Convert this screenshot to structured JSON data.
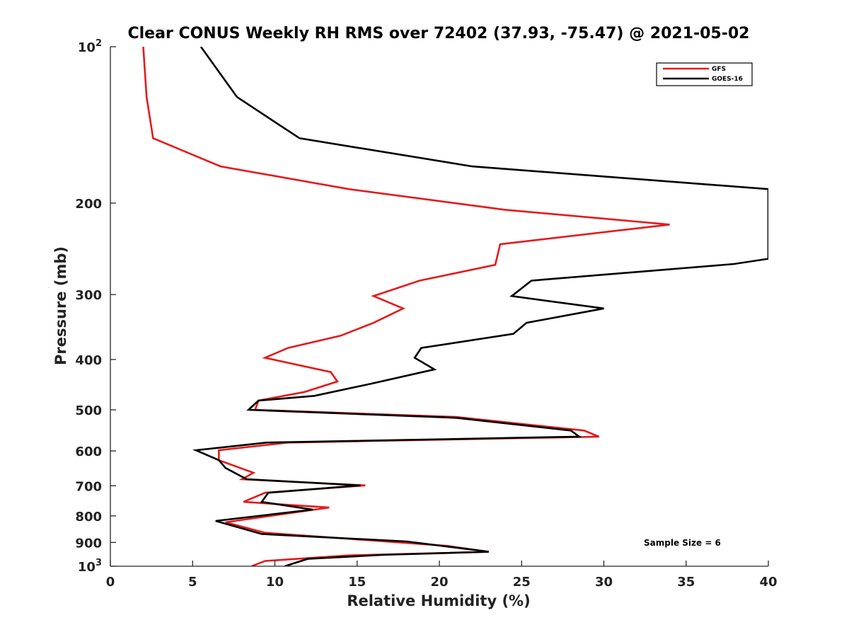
{
  "chart_data": {
    "type": "line",
    "title": "Clear CONUS Weekly RH RMS over 72402 (37.93, -75.47) @ 2021-05-02",
    "xlabel": "Relative Humidity (%)",
    "ylabel": "Pressure (mb)",
    "xlim": [
      0,
      40
    ],
    "ylim": [
      100,
      1000
    ],
    "yscale": "log",
    "yreversed": true,
    "grid": false,
    "legend_position": "top-right",
    "x_ticks": [
      {
        "value": 0,
        "label": "0"
      },
      {
        "value": 5,
        "label": "5"
      },
      {
        "value": 10,
        "label": "10"
      },
      {
        "value": 15,
        "label": "15"
      },
      {
        "value": 20,
        "label": "20"
      },
      {
        "value": 25,
        "label": "25"
      },
      {
        "value": 30,
        "label": "30"
      },
      {
        "value": 35,
        "label": "35"
      },
      {
        "value": 40,
        "label": "40"
      }
    ],
    "y_ticks": [
      {
        "value": 100,
        "label": "10",
        "sup": "2"
      },
      {
        "value": 200,
        "label": "200",
        "sup": ""
      },
      {
        "value": 300,
        "label": "300",
        "sup": ""
      },
      {
        "value": 400,
        "label": "400",
        "sup": ""
      },
      {
        "value": 500,
        "label": "500",
        "sup": ""
      },
      {
        "value": 600,
        "label": "600",
        "sup": ""
      },
      {
        "value": 700,
        "label": "700",
        "sup": ""
      },
      {
        "value": 800,
        "label": "800",
        "sup": ""
      },
      {
        "value": 900,
        "label": "900",
        "sup": ""
      },
      {
        "value": 1000,
        "label": "10",
        "sup": "3"
      }
    ],
    "series": [
      {
        "name": "GFS",
        "color": "#e41a1c",
        "points": [
          [
            2.0,
            100
          ],
          [
            2.2,
            125
          ],
          [
            2.6,
            150
          ],
          [
            6.7,
            170
          ],
          [
            14.5,
            188
          ],
          [
            24.0,
            206
          ],
          [
            34.0,
            220
          ],
          [
            23.7,
            240
          ],
          [
            23.4,
            263
          ],
          [
            18.8,
            282
          ],
          [
            16.0,
            302
          ],
          [
            17.8,
            319
          ],
          [
            16.0,
            340
          ],
          [
            14.0,
            360
          ],
          [
            10.8,
            380
          ],
          [
            9.4,
            397
          ],
          [
            13.4,
            423
          ],
          [
            13.8,
            441
          ],
          [
            11.8,
            462
          ],
          [
            9.0,
            480
          ],
          [
            8.8,
            500
          ],
          [
            21.0,
            516
          ],
          [
            28.8,
            548
          ],
          [
            29.7,
            563
          ],
          [
            10.8,
            578
          ],
          [
            6.6,
            598
          ],
          [
            6.6,
            625
          ],
          [
            8.7,
            661
          ],
          [
            8.0,
            680
          ],
          [
            15.5,
            699
          ],
          [
            9.4,
            722
          ],
          [
            8.1,
            752
          ],
          [
            13.3,
            771
          ],
          [
            7.0,
            823
          ],
          [
            9.4,
            862
          ],
          [
            20.5,
            914
          ],
          [
            23.0,
            938
          ],
          [
            14.5,
            953
          ],
          [
            9.4,
            977
          ],
          [
            8.6,
            1000
          ]
        ]
      },
      {
        "name": "GOES-16",
        "color": "#000000",
        "points": [
          [
            5.5,
            100
          ],
          [
            7.7,
            125
          ],
          [
            11.5,
            150
          ],
          [
            22.0,
            170
          ],
          [
            40.0,
            188
          ],
          [
            40.0,
            256
          ],
          [
            37.9,
            262
          ],
          [
            25.6,
            282
          ],
          [
            24.4,
            302
          ],
          [
            30.0,
            319
          ],
          [
            25.3,
            340
          ],
          [
            24.5,
            357
          ],
          [
            18.9,
            380
          ],
          [
            18.5,
            397
          ],
          [
            19.7,
            418
          ],
          [
            15.9,
            445
          ],
          [
            12.4,
            470
          ],
          [
            9.0,
            480
          ],
          [
            8.4,
            500
          ],
          [
            21.0,
            518
          ],
          [
            28.0,
            548
          ],
          [
            28.5,
            563
          ],
          [
            9.5,
            578
          ],
          [
            5.2,
            598
          ],
          [
            6.6,
            625
          ],
          [
            7.0,
            647
          ],
          [
            7.9,
            670
          ],
          [
            8.3,
            680
          ],
          [
            15.2,
            699
          ],
          [
            9.6,
            722
          ],
          [
            9.2,
            752
          ],
          [
            12.3,
            778
          ],
          [
            6.4,
            818
          ],
          [
            9.2,
            867
          ],
          [
            18.0,
            896
          ],
          [
            23.0,
            938
          ],
          [
            16.5,
            951
          ],
          [
            12.0,
            968
          ],
          [
            10.6,
            1000
          ]
        ]
      }
    ],
    "annotations": [
      {
        "text": "Sample Size = 6"
      }
    ]
  }
}
